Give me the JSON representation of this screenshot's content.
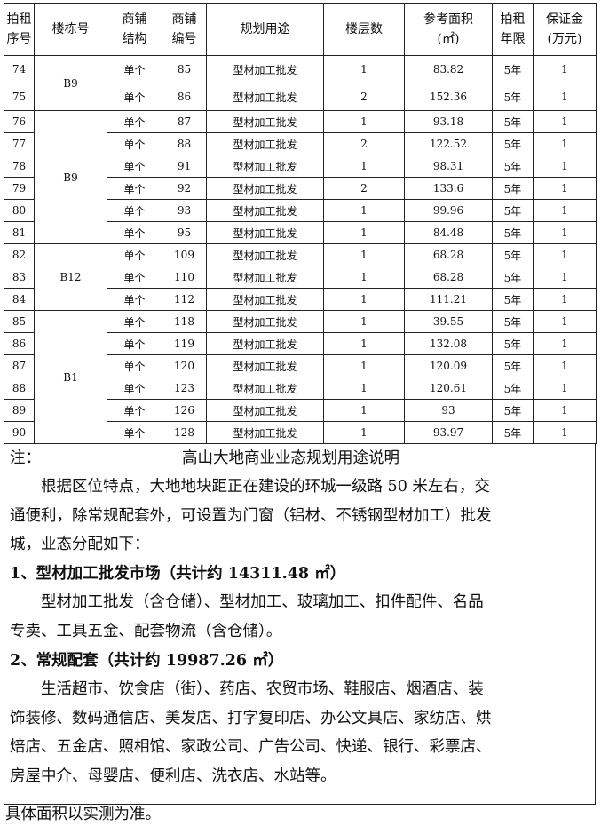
{
  "headers": [
    "拍租\n序号",
    "楼栋号",
    "商铺\n结构",
    "商铺\n编号",
    "规划用途",
    "楼层数",
    "参考面积\n(㎡)",
    "拍租\n年限",
    "保证金\n(万元)"
  ],
  "groups": [
    {
      "building": "B9",
      "rows": [
        [
          "74",
          "单个",
          "85",
          "型材加工批发",
          "1",
          "83.82",
          "5年",
          "1"
        ],
        [
          "75",
          "单个",
          "86",
          "型材加工批发",
          "2",
          "152.36",
          "5年",
          "1"
        ]
      ]
    },
    {
      "building": "B9",
      "rows": [
        [
          "76",
          "单个",
          "87",
          "型材加工批发",
          "1",
          "93.18",
          "5年",
          "1"
        ],
        [
          "77",
          "单个",
          "88",
          "型材加工批发",
          "2",
          "122.52",
          "5年",
          "1"
        ],
        [
          "78",
          "单个",
          "91",
          "型材加工批发",
          "1",
          "98.31",
          "5年",
          "1"
        ],
        [
          "79",
          "单个",
          "92",
          "型材加工批发",
          "2",
          "133.6",
          "5年",
          "1"
        ],
        [
          "80",
          "单个",
          "93",
          "型材加工批发",
          "1",
          "99.96",
          "5年",
          "1"
        ],
        [
          "81",
          "单个",
          "95",
          "型材加工批发",
          "1",
          "84.48",
          "5年",
          "1"
        ]
      ]
    },
    {
      "building": "B12",
      "rows": [
        [
          "82",
          "单个",
          "109",
          "型材加工批发",
          "1",
          "68.28",
          "5年",
          "1"
        ],
        [
          "83",
          "单个",
          "110",
          "型材加工批发",
          "1",
          "68.28",
          "5年",
          "1"
        ],
        [
          "84",
          "单个",
          "112",
          "型材加工批发",
          "1",
          "111.21",
          "5年",
          "1"
        ]
      ]
    },
    {
      "building": "B1",
      "rows": [
        [
          "85",
          "单个",
          "118",
          "型材加工批发",
          "1",
          "39.55",
          "5年",
          "1"
        ],
        [
          "86",
          "单个",
          "119",
          "型材加工批发",
          "1",
          "132.08",
          "5年",
          "1"
        ],
        [
          "87",
          "单个",
          "120",
          "型材加工批发",
          "1",
          "120.09",
          "5年",
          "1"
        ],
        [
          "88",
          "单个",
          "123",
          "型材加工批发",
          "1",
          "120.61",
          "5年",
          "1"
        ],
        [
          "89",
          "单个",
          "126",
          "型材加工批发",
          "1",
          "93",
          "5年",
          "1"
        ],
        [
          "90",
          "单个",
          "128",
          "型材加工批发",
          "1",
          "93.97",
          "5年",
          "1"
        ]
      ]
    }
  ],
  "notes": {
    "label": "注：",
    "title": "高山大地商业业态规划用途说明",
    "lines": [
      "　　根据区位特点，大地地块距正在建设的环城一级路 50 米左右，交",
      "通便利，除常规配套外，可设置为门窗（铝材、不锈钢型材加工）批发",
      "城，业态分配如下：",
      " 1、型材加工批发市场（共计约 14311.48 ㎡）",
      "　　型材加工批发（含仓储）、型材加工、玻璃加工、扣件配件、名品",
      "专卖、工具五金、配套物流（含仓储）。",
      " 2、常规配套（共计约 19987.26 ㎡）",
      "　　生活超市、饮食店（街）、药店、农贸市场、鞋服店、烟酒店、装",
      "饰装修、数码通信店、美发店、打字复印店、办公文具店、家纺店、烘",
      "焙店、五金店、照相馆、家政公司、广告公司、快递、银行、彩票店、",
      "房屋中介、母婴店、便利店、洗衣店、水站等。"
    ],
    "footer": "具体面积以实测为准。"
  }
}
